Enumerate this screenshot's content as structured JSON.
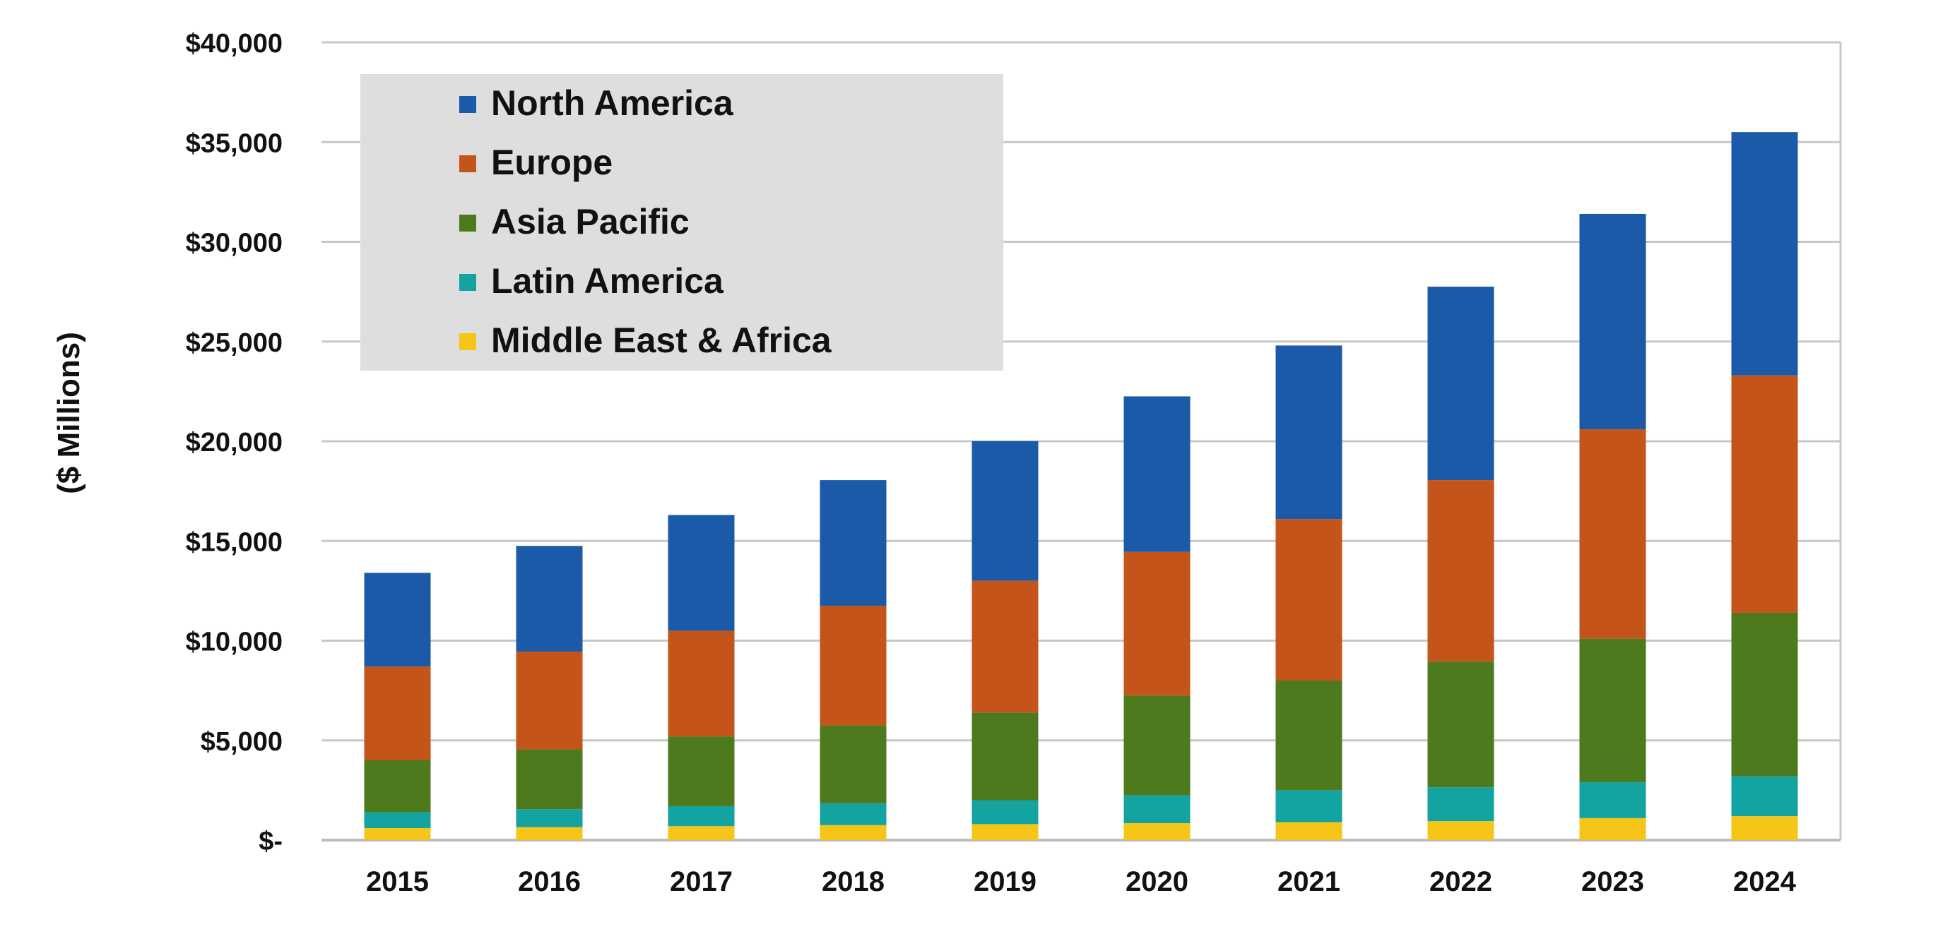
{
  "chart_data": {
    "type": "bar",
    "stacked": true,
    "title": "",
    "xlabel": "",
    "ylabel": "($ Millions)",
    "ylim": [
      0,
      40000
    ],
    "yticks": [
      0,
      5000,
      10000,
      15000,
      20000,
      25000,
      30000,
      35000,
      40000
    ],
    "ytick_labels": [
      "$-",
      "$5,000",
      "$10,000",
      "$15,000",
      "$20,000",
      "$25,000",
      "$30,000",
      "$35,000",
      "$40,000"
    ],
    "grid": true,
    "legend_position": "top-left",
    "categories": [
      "2015",
      "2016",
      "2017",
      "2018",
      "2019",
      "2020",
      "2021",
      "2022",
      "2023",
      "2024"
    ],
    "series": [
      {
        "name": "Middle East & Africa",
        "color": "#f5c518",
        "values": [
          600,
          650,
          700,
          750,
          800,
          850,
          900,
          950,
          1100,
          1200
        ]
      },
      {
        "name": "Latin America",
        "color": "#13a3a0",
        "values": [
          800,
          900,
          1000,
          1100,
          1200,
          1400,
          1600,
          1700,
          1800,
          2000
        ]
      },
      {
        "name": "Asia Pacific",
        "color": "#4e7a1e",
        "values": [
          2600,
          3000,
          3500,
          3900,
          4400,
          5000,
          5500,
          6300,
          7200,
          8200
        ]
      },
      {
        "name": "Europe",
        "color": "#c5541a",
        "values": [
          4700,
          4900,
          5300,
          6000,
          6600,
          7200,
          8100,
          9100,
          10500,
          11900
        ]
      },
      {
        "name": "North America",
        "color": "#1b5aa8",
        "values": [
          4700,
          5300,
          5800,
          6300,
          7000,
          7800,
          8700,
          9700,
          10800,
          12200
        ]
      }
    ]
  },
  "legend_order": [
    "North America",
    "Europe",
    "Asia Pacific",
    "Latin America",
    "Middle East & Africa"
  ],
  "colors": {
    "grid": "#c8c8c8",
    "legend_background": "#dedede",
    "axis": "#bdbdbd"
  }
}
